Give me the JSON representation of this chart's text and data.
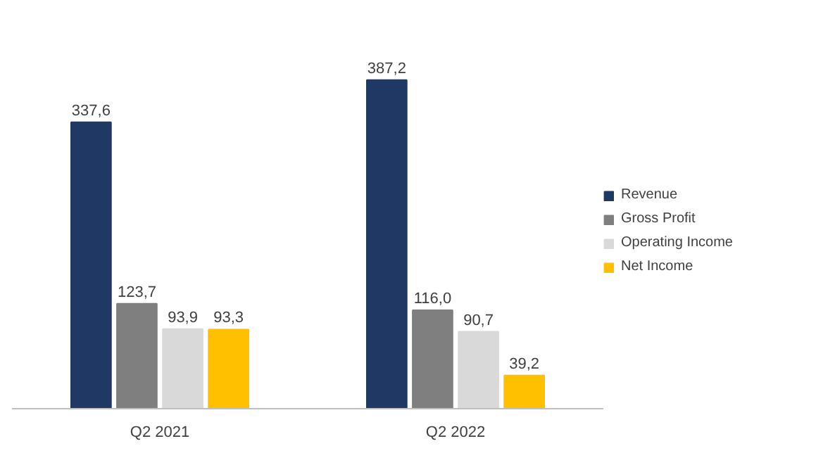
{
  "chart_data": {
    "type": "bar",
    "categories": [
      "Q2 2021",
      "Q2 2022"
    ],
    "series": [
      {
        "name": "Revenue",
        "color": "#203864",
        "values": [
          337.6,
          387.2
        ],
        "value_labels": [
          "337,6",
          "387,2"
        ]
      },
      {
        "name": "Gross Profit",
        "color": "#7f7f7f",
        "values": [
          123.7,
          116.0
        ],
        "value_labels": [
          "123,7",
          "116,0"
        ]
      },
      {
        "name": "Operating Income",
        "color": "#d9d9d9",
        "values": [
          93.9,
          90.7
        ],
        "value_labels": [
          "93,9",
          "90,7"
        ]
      },
      {
        "name": "Net Income",
        "color": "#ffc000",
        "values": [
          93.3,
          39.2
        ],
        "value_labels": [
          "93,3",
          "39,2"
        ]
      }
    ],
    "legend": "right"
  }
}
